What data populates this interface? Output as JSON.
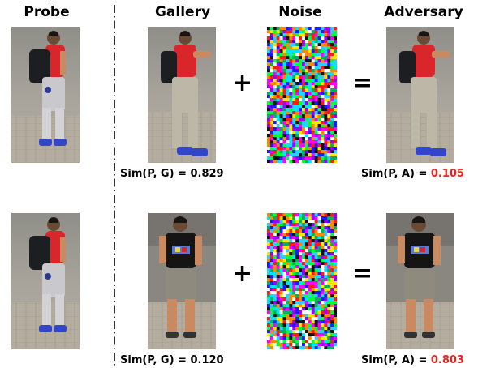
{
  "headers": {
    "probe": "Probe",
    "gallery": "Gallery",
    "noise": "Noise",
    "adversary": "Adversary"
  },
  "operators": {
    "plus": "+",
    "equals": "="
  },
  "rows": [
    {
      "gallery_shirt": "red",
      "sim_pg_label": "Sim(P, G) = ",
      "sim_pg_value": "0.829",
      "sim_pa_label": "Sim(P, A) = ",
      "sim_pa_value": "0.105"
    },
    {
      "gallery_shirt": "black",
      "sim_pg_label": "Sim(P, G) = ",
      "sim_pg_value": "0.120",
      "sim_pa_label": "Sim(P, A) = ",
      "sim_pa_value": "0.803"
    }
  ],
  "colors": {
    "highlight": "#e8231f",
    "probe_shirt": "#d9262b",
    "gallery2_shirt": "#151515"
  }
}
